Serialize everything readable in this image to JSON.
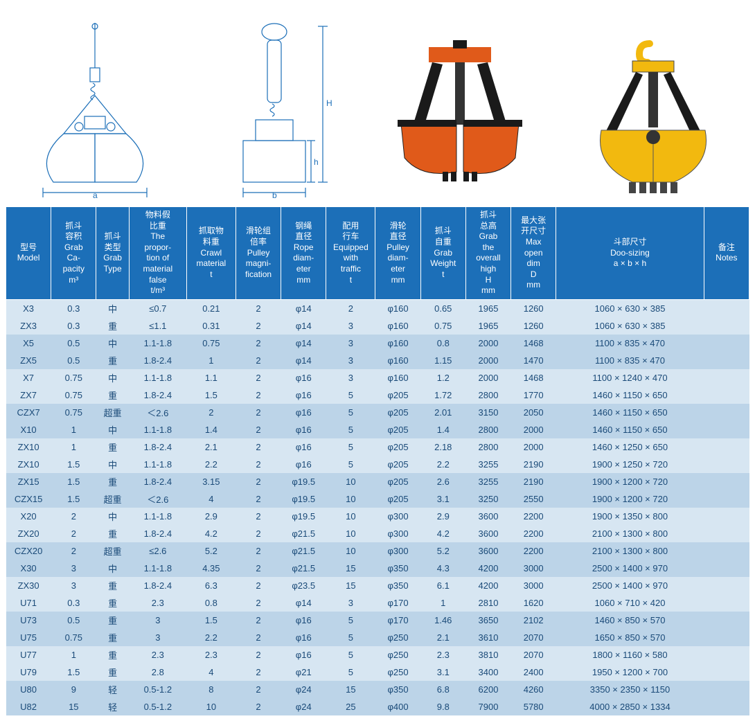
{
  "diagrams": {
    "front_label_a": "a",
    "side_label_b": "b",
    "height_label_H": "H",
    "height_label_h": "h",
    "line_color": "#1c6fb8"
  },
  "photos": {
    "orange_color": "#e05a1a",
    "yellow_color": "#f2b90f",
    "dark_color": "#1a1a1a",
    "hook_color": "#f2b90f"
  },
  "table": {
    "header_bg": "#1c6fb8",
    "header_fg": "#ffffff",
    "row_bg_a": "#d7e6f2",
    "row_bg_b": "#bcd4e8",
    "row_bg_c": "#eef5fb",
    "row_bg_d": "#cde0f0",
    "text_color": "#1a4a78",
    "columns": [
      "型号\nModel",
      "抓斗\n容积\nGrab\nCa-\npacity\nm³",
      "抓斗\n类型\nGrab\nType",
      "物料假\n比重\nThe\npropor-\ntion of\nmaterial\nfalse\nt/m³",
      "抓取物\n料重\nCrawl\nmaterial\nt",
      "滑轮组\n倍率\nPulley\nmagni-\nfication",
      "钢绳\n直径\nRope\ndiam-\neter\nmm",
      "配用\n行车\nEquipped\nwith\ntraffic\nt",
      "滑轮\n直径\nPulley\ndiam-\neter\nmm",
      "抓斗\n自重\nGrab\nWeight\nt",
      "抓斗\n总高\nGrab\nthe\noverall\nhigh\nH\nmm",
      "最大张\n开尺寸\nMax\nopen\ndim\nD\nmm",
      "斗部尺寸\nDoo-sizing\na × b × h",
      "备注\nNotes"
    ],
    "rows": [
      [
        "X3",
        "0.3",
        "中",
        "≤0.7",
        "0.21",
        "2",
        "φ14",
        "2",
        "φ160",
        "0.65",
        "1965",
        "1260",
        "1060 × 630 × 385",
        ""
      ],
      [
        "ZX3",
        "0.3",
        "重",
        "≤1.1",
        "0.31",
        "2",
        "φ14",
        "3",
        "φ160",
        "0.75",
        "1965",
        "1260",
        "1060 × 630 × 385",
        ""
      ],
      [
        "X5",
        "0.5",
        "中",
        "1.1-1.8",
        "0.75",
        "2",
        "φ14",
        "3",
        "φ160",
        "0.8",
        "2000",
        "1468",
        "1100 × 835 × 470",
        ""
      ],
      [
        "ZX5",
        "0.5",
        "重",
        "1.8-2.4",
        "1",
        "2",
        "φ14",
        "3",
        "φ160",
        "1.15",
        "2000",
        "1470",
        "1100 × 835 × 470",
        ""
      ],
      [
        "X7",
        "0.75",
        "中",
        "1.1-1.8",
        "1.1",
        "2",
        "φ16",
        "3",
        "φ160",
        "1.2",
        "2000",
        "1468",
        "1100 × 1240 × 470",
        ""
      ],
      [
        "ZX7",
        "0.75",
        "重",
        "1.8-2.4",
        "1.5",
        "2",
        "φ16",
        "5",
        "φ205",
        "1.72",
        "2800",
        "1770",
        "1460 × 1150 × 650",
        ""
      ],
      [
        "CZX7",
        "0.75",
        "超重",
        "＜2.6",
        "2",
        "2",
        "φ16",
        "5",
        "φ205",
        "2.01",
        "3150",
        "2050",
        "1460 × 1150 × 650",
        ""
      ],
      [
        "X10",
        "1",
        "中",
        "1.1-1.8",
        "1.4",
        "2",
        "φ16",
        "5",
        "φ205",
        "1.4",
        "2800",
        "2000",
        "1460 × 1150 × 650",
        ""
      ],
      [
        "ZX10",
        "1",
        "重",
        "1.8-2.4",
        "2.1",
        "2",
        "φ16",
        "5",
        "φ205",
        "2.18",
        "2800",
        "2000",
        "1460 × 1250 × 650",
        ""
      ],
      [
        "ZX10",
        "1.5",
        "中",
        "1.1-1.8",
        "2.2",
        "2",
        "φ16",
        "5",
        "φ205",
        "2.2",
        "3255",
        "2190",
        "1900 × 1250 × 720",
        ""
      ],
      [
        "ZX15",
        "1.5",
        "重",
        "1.8-2.4",
        "3.15",
        "2",
        "φ19.5",
        "10",
        "φ205",
        "2.6",
        "3255",
        "2190",
        "1900 × 1200 × 720",
        ""
      ],
      [
        "CZX15",
        "1.5",
        "超重",
        "＜2.6",
        "4",
        "2",
        "φ19.5",
        "10",
        "φ205",
        "3.1",
        "3250",
        "2550",
        "1900 × 1200 × 720",
        ""
      ],
      [
        "X20",
        "2",
        "中",
        "1.1-1.8",
        "2.9",
        "2",
        "φ19.5",
        "10",
        "φ300",
        "2.9",
        "3600",
        "2200",
        "1900 × 1350 × 800",
        ""
      ],
      [
        "ZX20",
        "2",
        "重",
        "1.8-2.4",
        "4.2",
        "2",
        "φ21.5",
        "10",
        "φ300",
        "4.2",
        "3600",
        "2200",
        "2100 × 1300 × 800",
        ""
      ],
      [
        "CZX20",
        "2",
        "超重",
        "≤2.6",
        "5.2",
        "2",
        "φ21.5",
        "10",
        "φ300",
        "5.2",
        "3600",
        "2200",
        "2100 × 1300 × 800",
        ""
      ],
      [
        "X30",
        "3",
        "中",
        "1.1-1.8",
        "4.35",
        "2",
        "φ21.5",
        "15",
        "φ350",
        "4.3",
        "4200",
        "3000",
        "2500 × 1400 × 970",
        ""
      ],
      [
        "ZX30",
        "3",
        "重",
        "1.8-2.4",
        "6.3",
        "2",
        "φ23.5",
        "15",
        "φ350",
        "6.1",
        "4200",
        "3000",
        "2500 × 1400 × 970",
        ""
      ],
      [
        "U71",
        "0.3",
        "重",
        "2.3",
        "0.8",
        "2",
        "φ14",
        "3",
        "φ170",
        "1",
        "2810",
        "1620",
        "1060 × 710 × 420",
        ""
      ],
      [
        "U73",
        "0.5",
        "重",
        "3",
        "1.5",
        "2",
        "φ16",
        "5",
        "φ170",
        "1.46",
        "3650",
        "2102",
        "1460 × 850 × 570",
        ""
      ],
      [
        "U75",
        "0.75",
        "重",
        "3",
        "2.2",
        "2",
        "φ16",
        "5",
        "φ250",
        "2.1",
        "3610",
        "2070",
        "1650 × 850 × 570",
        ""
      ],
      [
        "U77",
        "1",
        "重",
        "2.3",
        "2.3",
        "2",
        "φ16",
        "5",
        "φ250",
        "2.3",
        "3810",
        "2070",
        "1800 × 1160 × 580",
        ""
      ],
      [
        "U79",
        "1.5",
        "重",
        "2.8",
        "4",
        "2",
        "φ21",
        "5",
        "φ250",
        "3.1",
        "3400",
        "2400",
        "1950 × 1200 × 700",
        ""
      ],
      [
        "U80",
        "9",
        "轻",
        "0.5-1.2",
        "8",
        "2",
        "φ24",
        "15",
        "φ350",
        "6.8",
        "6200",
        "4260",
        "3350 × 2350 × 1150",
        ""
      ],
      [
        "U82",
        "15",
        "轻",
        "0.5-1.2",
        "10",
        "2",
        "φ24",
        "25",
        "φ400",
        "9.8",
        "7900",
        "5780",
        "4000 × 2850 × 1334",
        ""
      ]
    ],
    "row_shade_pattern": [
      "a",
      "a",
      "b",
      "b",
      "a",
      "a",
      "b",
      "b",
      "a",
      "a",
      "b",
      "b",
      "a",
      "a",
      "b",
      "b",
      "a",
      "a",
      "b",
      "b",
      "a",
      "a",
      "b",
      "b"
    ]
  }
}
